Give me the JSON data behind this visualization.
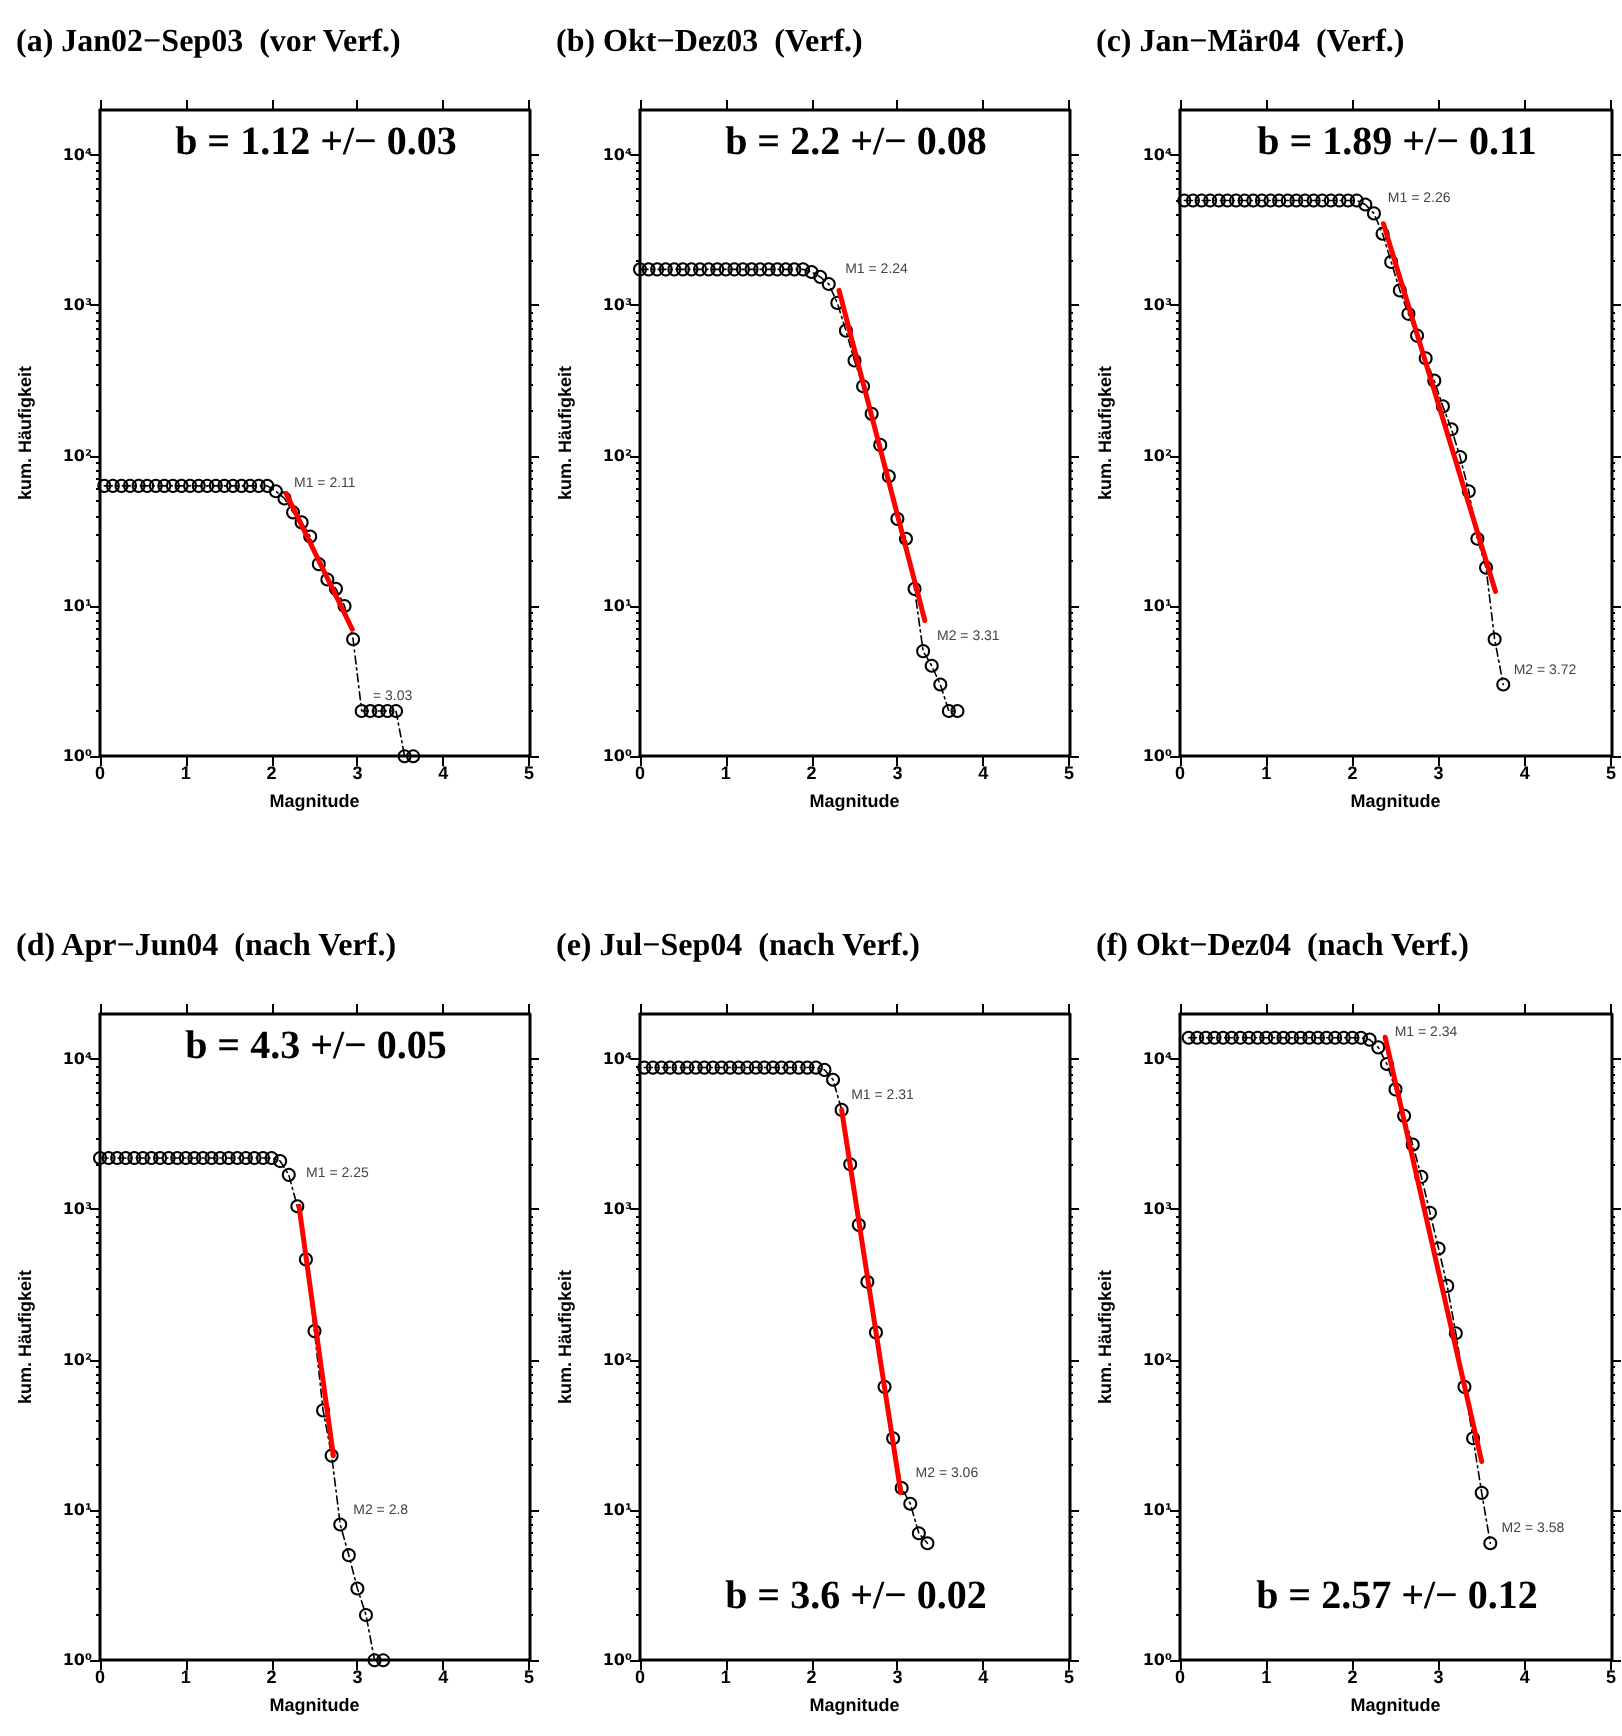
{
  "chart_data": [
    {
      "type": "line",
      "title": "(a) Jan02−Sep03  (vor Verf.)",
      "xlabel": "Magnitude",
      "ylabel": "kum. Häufigkeit",
      "log": true,
      "xlim": [
        0,
        5
      ],
      "xticks": [
        0,
        1,
        2,
        3,
        4,
        5
      ],
      "ylim": [
        1,
        20000
      ],
      "yticks": [
        {
          "value": 1,
          "label": "10⁰"
        },
        {
          "value": 10,
          "label": "10¹"
        },
        {
          "value": 100,
          "label": "10²"
        },
        {
          "value": 1000,
          "label": "10³"
        },
        {
          "value": 10000,
          "label": "10⁴"
        }
      ],
      "series": [
        {
          "color": "#000000",
          "marker": "circle",
          "line_style": "dashed",
          "x": [
            0.05,
            0.15,
            0.25,
            0.35,
            0.45,
            0.55,
            0.65,
            0.75,
            0.85,
            0.95,
            1.05,
            1.15,
            1.25,
            1.35,
            1.45,
            1.55,
            1.65,
            1.75,
            1.85,
            1.95,
            2.05,
            2.15,
            2.25,
            2.35,
            2.45,
            2.55,
            2.65,
            2.75,
            2.85,
            2.95,
            3.05,
            3.15,
            3.25,
            3.35,
            3.45,
            3.55,
            3.65
          ],
          "values": [
            63,
            63,
            63,
            63,
            63,
            63,
            63,
            63,
            63,
            63,
            63,
            63,
            63,
            63,
            63,
            63,
            63,
            63,
            63,
            63,
            58,
            52,
            42,
            36,
            29,
            19,
            15,
            13,
            10,
            6,
            2,
            2,
            2,
            2,
            2,
            1,
            1
          ]
        },
        {
          "color": "#ff0000",
          "marker": "none",
          "line_style": "solid",
          "x": [
            2.17,
            2.94
          ],
          "values": [
            56,
            7
          ]
        }
      ],
      "annotations": [
        "b = 1.12 +/− 0.03",
        {
          "text": "M1 = 2.11",
          "x": 2.11,
          "y": 52
        },
        {
          "text": "= 3.03",
          "x": 3.03,
          "y": 2
        }
      ]
    },
    {
      "type": "line",
      "title": "(b) Okt−Dez03  (Verf.)",
      "xlabel": "Magnitude",
      "ylabel": "kum. Häufigkeit",
      "log": true,
      "xlim": [
        0,
        5
      ],
      "xticks": [
        0,
        1,
        2,
        3,
        4,
        5
      ],
      "ylim": [
        1,
        20000
      ],
      "yticks": [
        {
          "value": 1,
          "label": "10⁰"
        },
        {
          "value": 10,
          "label": "10¹"
        },
        {
          "value": 100,
          "label": "10²"
        },
        {
          "value": 1000,
          "label": "10³"
        },
        {
          "value": 10000,
          "label": "10⁴"
        }
      ],
      "series": [
        {
          "color": "#000000",
          "marker": "circle",
          "line_style": "dashed",
          "x": [
            0,
            0.1,
            0.2,
            0.3,
            0.4,
            0.5,
            0.6,
            0.7,
            0.8,
            0.9,
            1,
            1.1,
            1.2,
            1.3,
            1.4,
            1.5,
            1.6,
            1.7,
            1.8,
            1.9,
            2,
            2.1,
            2.2,
            2.3,
            2.4,
            2.5,
            2.6,
            2.7,
            2.8,
            2.9,
            3,
            3.1,
            3.2,
            3.3,
            3.4,
            3.5,
            3.6,
            3.7
          ],
          "values": [
            1740,
            1740,
            1740,
            1740,
            1740,
            1740,
            1740,
            1740,
            1740,
            1740,
            1740,
            1740,
            1740,
            1740,
            1740,
            1740,
            1740,
            1740,
            1740,
            1740,
            1670,
            1550,
            1390,
            1040,
            680,
            430,
            290,
            190,
            118,
            73,
            38,
            28,
            13,
            5,
            4,
            3,
            2,
            2
          ]
        },
        {
          "color": "#ff0000",
          "marker": "none",
          "line_style": "solid",
          "x": [
            2.32,
            3.32
          ],
          "values": [
            1260,
            8
          ]
        }
      ],
      "annotations": [
        "b = 2.2 +/− 0.08",
        {
          "text": "M1 = 2.24",
          "x": 2.24,
          "y": 1390
        },
        {
          "text": "M2 = 3.31",
          "x": 3.31,
          "y": 5
        }
      ]
    },
    {
      "type": "line",
      "title": "(c) Jan−Mär04  (Verf.)",
      "xlabel": "Magnitude",
      "ylabel": "kum. Häufigkeit",
      "log": true,
      "xlim": [
        0,
        5
      ],
      "xticks": [
        0,
        1,
        2,
        3,
        4,
        5
      ],
      "ylim": [
        1,
        20000
      ],
      "yticks": [
        {
          "value": 1,
          "label": "10⁰"
        },
        {
          "value": 10,
          "label": "10¹"
        },
        {
          "value": 100,
          "label": "10²"
        },
        {
          "value": 1000,
          "label": "10³"
        },
        {
          "value": 10000,
          "label": "10⁴"
        }
      ],
      "series": [
        {
          "color": "#000000",
          "marker": "circle",
          "line_style": "dashed",
          "x": [
            0.05,
            0.15,
            0.25,
            0.35,
            0.45,
            0.55,
            0.65,
            0.75,
            0.85,
            0.95,
            1.05,
            1.15,
            1.25,
            1.35,
            1.45,
            1.55,
            1.65,
            1.75,
            1.85,
            1.95,
            2.05,
            2.15,
            2.25,
            2.35,
            2.45,
            2.55,
            2.65,
            2.75,
            2.85,
            2.95,
            3.05,
            3.15,
            3.25,
            3.35,
            3.45,
            3.55,
            3.65,
            3.75
          ],
          "values": [
            5000,
            5000,
            5000,
            5000,
            5000,
            5000,
            5000,
            5000,
            5000,
            5000,
            5000,
            5000,
            5000,
            5000,
            5000,
            5000,
            5000,
            5000,
            5000,
            5000,
            5000,
            4700,
            4100,
            3000,
            1950,
            1260,
            880,
            630,
            445,
            316,
            213,
            150,
            98,
            58,
            28,
            18,
            6,
            3
          ]
        },
        {
          "color": "#ff0000",
          "marker": "none",
          "line_style": "solid",
          "x": [
            2.36,
            3.66
          ],
          "values": [
            3500,
            12.5
          ]
        }
      ],
      "annotations": [
        "b = 1.89 +/− 0.11",
        {
          "text": "M1 = 2.26",
          "x": 2.26,
          "y": 4100
        },
        {
          "text": "M2 = 3.72",
          "x": 3.72,
          "y": 3
        }
      ]
    },
    {
      "type": "line",
      "title": "(d) Apr−Jun04  (nach Verf.)",
      "xlabel": "Magnitude",
      "ylabel": "kum. Häufigkeit",
      "log": true,
      "xlim": [
        0,
        5
      ],
      "xticks": [
        0,
        1,
        2,
        3,
        4,
        5
      ],
      "ylim": [
        1,
        20000
      ],
      "yticks": [
        {
          "value": 1,
          "label": "10⁰"
        },
        {
          "value": 10,
          "label": "10¹"
        },
        {
          "value": 100,
          "label": "10²"
        },
        {
          "value": 1000,
          "label": "10³"
        },
        {
          "value": 10000,
          "label": "10⁴"
        }
      ],
      "series": [
        {
          "color": "#000000",
          "marker": "circle",
          "line_style": "dashed",
          "x": [
            0,
            0.1,
            0.2,
            0.3,
            0.4,
            0.5,
            0.6,
            0.7,
            0.8,
            0.9,
            1,
            1.1,
            1.2,
            1.3,
            1.4,
            1.5,
            1.6,
            1.7,
            1.8,
            1.9,
            2,
            2.1,
            2.2,
            2.3,
            2.4,
            2.5,
            2.6,
            2.7,
            2.8,
            2.9,
            3,
            3.1,
            3.2,
            3.3
          ],
          "values": [
            2200,
            2200,
            2200,
            2200,
            2200,
            2200,
            2200,
            2200,
            2200,
            2200,
            2200,
            2200,
            2200,
            2200,
            2200,
            2200,
            2200,
            2200,
            2200,
            2200,
            2200,
            2100,
            1700,
            1050,
            465,
            155,
            46,
            23,
            8,
            5,
            3,
            2,
            1,
            1
          ]
        },
        {
          "color": "#ff0000",
          "marker": "none",
          "line_style": "solid",
          "x": [
            2.32,
            2.72
          ],
          "values": [
            1050,
            23
          ]
        }
      ],
      "annotations": [
        "b = 4.3 +/− 0.05",
        {
          "text": "M1 = 2.25",
          "x": 2.25,
          "y": 1400
        },
        {
          "text": "M2 = 2.8",
          "x": 2.8,
          "y": 8
        }
      ]
    },
    {
      "type": "line",
      "title": "(e) Jul−Sep04  (nach Verf.)",
      "xlabel": "Magnitude",
      "ylabel": "kum. Häufigkeit",
      "log": true,
      "xlim": [
        0,
        5
      ],
      "xticks": [
        0,
        1,
        2,
        3,
        4,
        5
      ],
      "ylim": [
        1,
        20000
      ],
      "yticks": [
        {
          "value": 1,
          "label": "10⁰"
        },
        {
          "value": 10,
          "label": "10¹"
        },
        {
          "value": 100,
          "label": "10²"
        },
        {
          "value": 1000,
          "label": "10³"
        },
        {
          "value": 10000,
          "label": "10⁴"
        }
      ],
      "series": [
        {
          "color": "#000000",
          "marker": "circle",
          "line_style": "dashed",
          "x": [
            0.05,
            0.15,
            0.25,
            0.35,
            0.45,
            0.55,
            0.65,
            0.75,
            0.85,
            0.95,
            1.05,
            1.15,
            1.25,
            1.35,
            1.45,
            1.55,
            1.65,
            1.75,
            1.85,
            1.95,
            2.05,
            2.15,
            2.25,
            2.35,
            2.45,
            2.55,
            2.65,
            2.75,
            2.85,
            2.95,
            3.05,
            3.15,
            3.25,
            3.35
          ],
          "values": [
            8800,
            8800,
            8800,
            8800,
            8800,
            8800,
            8800,
            8800,
            8800,
            8800,
            8800,
            8800,
            8800,
            8800,
            8800,
            8800,
            8800,
            8800,
            8800,
            8800,
            8800,
            8500,
            7300,
            4600,
            2000,
            790,
            330,
            152,
            66,
            30,
            14,
            11,
            7,
            6
          ]
        },
        {
          "color": "#ff0000",
          "marker": "none",
          "line_style": "solid",
          "x": [
            2.35,
            3.04
          ],
          "values": [
            4600,
            13
          ]
        }
      ],
      "annotations": [
        "b = 3.6 +/− 0.02",
        {
          "text": "M1 = 2.31",
          "x": 2.31,
          "y": 4600
        },
        {
          "text": "M2 = 3.06",
          "x": 3.06,
          "y": 14
        }
      ]
    },
    {
      "type": "line",
      "title": "(f) Okt−Dez04  (nach Verf.)",
      "xlabel": "Magnitude",
      "ylabel": "kum. Häufigkeit",
      "log": true,
      "xlim": [
        0,
        5
      ],
      "xticks": [
        0,
        1,
        2,
        3,
        4,
        5
      ],
      "ylim": [
        1,
        20000
      ],
      "yticks": [
        {
          "value": 1,
          "label": "10⁰"
        },
        {
          "value": 10,
          "label": "10¹"
        },
        {
          "value": 100,
          "label": "10²"
        },
        {
          "value": 1000,
          "label": "10³"
        },
        {
          "value": 10000,
          "label": "10⁴"
        }
      ],
      "series": [
        {
          "color": "#000000",
          "marker": "circle",
          "line_style": "dashed",
          "x": [
            0.1,
            0.2,
            0.3,
            0.4,
            0.5,
            0.6,
            0.7,
            0.8,
            0.9,
            1,
            1.1,
            1.2,
            1.3,
            1.4,
            1.5,
            1.6,
            1.7,
            1.8,
            1.9,
            2,
            2.1,
            2.2,
            2.3,
            2.4,
            2.5,
            2.6,
            2.7,
            2.8,
            2.9,
            3,
            3.1,
            3.2,
            3.3,
            3.4,
            3.5,
            3.6
          ],
          "values": [
            13900,
            13900,
            13900,
            13900,
            13900,
            13900,
            13900,
            13900,
            13900,
            13900,
            13900,
            13900,
            13900,
            13900,
            13900,
            13900,
            13900,
            13900,
            13900,
            13900,
            13900,
            13500,
            12000,
            9300,
            6300,
            4200,
            2700,
            1650,
            950,
            550,
            310,
            150,
            66,
            30,
            13,
            6
          ]
        },
        {
          "color": "#ff0000",
          "marker": "none",
          "line_style": "solid",
          "x": [
            2.38,
            3.5
          ],
          "values": [
            14000,
            21
          ]
        }
      ],
      "annotations": [
        "b = 2.57 +/− 0.12",
        {
          "text": "M1 = 2.34",
          "x": 2.34,
          "y": 12000
        },
        {
          "text": "M2 = 3.58",
          "x": 3.58,
          "y": 6
        }
      ]
    }
  ]
}
